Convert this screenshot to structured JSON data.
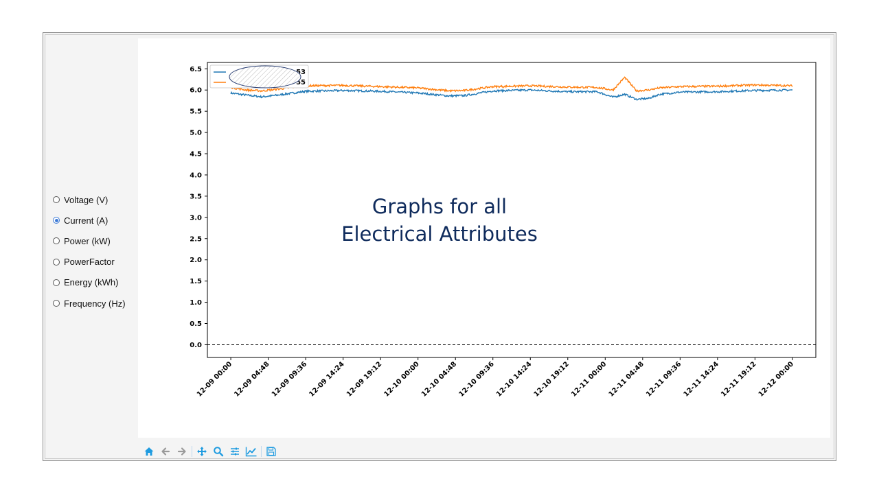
{
  "sidebar": {
    "options": [
      {
        "label": "Voltage (V)",
        "selected": false
      },
      {
        "label": "Current (A)",
        "selected": true
      },
      {
        "label": "Power (kW)",
        "selected": false
      },
      {
        "label": "PowerFactor",
        "selected": false
      },
      {
        "label": "Energy (kWh)",
        "selected": false
      },
      {
        "label": "Frequency (Hz)",
        "selected": false
      }
    ]
  },
  "overlay": {
    "line1": "Graphs for all",
    "line2": "Electrical Attributes"
  },
  "toolbar": {
    "icons": [
      "home-icon",
      "back-arrow-icon",
      "forward-arrow-icon",
      "pan-icon",
      "zoom-icon",
      "configure-subplots-icon",
      "edit-axis-icon",
      "save-icon"
    ]
  },
  "colors": {
    "series1": "#1f77b4",
    "series2": "#ff7f0e",
    "toolbar_icon": "#1e9be0",
    "title": "#0f2b5c"
  },
  "chart_data": {
    "type": "line",
    "title": "",
    "xlabel": "",
    "ylabel": "",
    "ylim": [
      -0.3,
      6.65
    ],
    "yticks": [
      "0.0",
      "0.5",
      "1.0",
      "1.5",
      "2.0",
      "2.5",
      "3.0",
      "3.5",
      "4.0",
      "4.5",
      "5.0",
      "5.5",
      "6.0",
      "6.5"
    ],
    "xlim": [
      "12-08 21:00",
      "12-12 03:00"
    ],
    "xticks": [
      "12-09 00:00",
      "12-09 04:48",
      "12-09 09:36",
      "12-09 14:24",
      "12-09 19:12",
      "12-10 00:00",
      "12-10 04:48",
      "12-10 09:36",
      "12-10 14:24",
      "12-10 19:12",
      "12-11 00:00",
      "12-11 04:48",
      "12-11 09:36",
      "12-11 14:24",
      "12-11 19:12",
      "12-12 00:00"
    ],
    "hline": 0.0,
    "legend": {
      "position": "top-left",
      "labels_obscured": true,
      "visible_fragments": [
        "53",
        "55"
      ]
    },
    "series": [
      {
        "x": [
          "12-09 00:00",
          "12-09 02:00",
          "12-09 04:00",
          "12-09 06:00",
          "12-09 09:36",
          "12-09 14:24",
          "12-09 19:12",
          "12-10 00:00",
          "12-10 04:00",
          "12-10 06:00",
          "12-10 09:36",
          "12-10 14:24",
          "12-10 19:12",
          "12-10 23:00",
          "12-11 01:00",
          "12-11 02:30",
          "12-11 04:00",
          "12-11 05:30",
          "12-11 07:00",
          "12-11 09:36",
          "12-11 14:24",
          "12-11 19:12",
          "12-12 00:00"
        ],
        "y": [
          5.93,
          5.88,
          5.84,
          5.88,
          5.97,
          5.99,
          5.97,
          5.93,
          5.86,
          5.87,
          5.98,
          6.0,
          5.96,
          5.96,
          5.83,
          5.9,
          5.78,
          5.8,
          5.9,
          5.95,
          5.96,
          5.99,
          6.0
        ]
      },
      {
        "x": [
          "12-09 00:00",
          "12-09 02:00",
          "12-09 04:00",
          "12-09 06:00",
          "12-09 09:36",
          "12-09 14:24",
          "12-09 19:12",
          "12-10 00:00",
          "12-10 04:00",
          "12-10 06:00",
          "12-10 09:36",
          "12-10 14:24",
          "12-10 19:12",
          "12-10 23:00",
          "12-11 01:00",
          "12-11 02:30",
          "12-11 04:00",
          "12-11 05:30",
          "12-11 07:00",
          "12-11 09:36",
          "12-11 14:24",
          "12-11 19:12",
          "12-12 00:00"
        ],
        "y": [
          6.06,
          6.0,
          5.98,
          6.02,
          6.1,
          6.11,
          6.08,
          6.05,
          5.98,
          5.99,
          6.08,
          6.1,
          6.07,
          6.06,
          6.0,
          6.3,
          5.98,
          6.0,
          6.05,
          6.08,
          6.09,
          6.12,
          6.1
        ]
      }
    ]
  }
}
